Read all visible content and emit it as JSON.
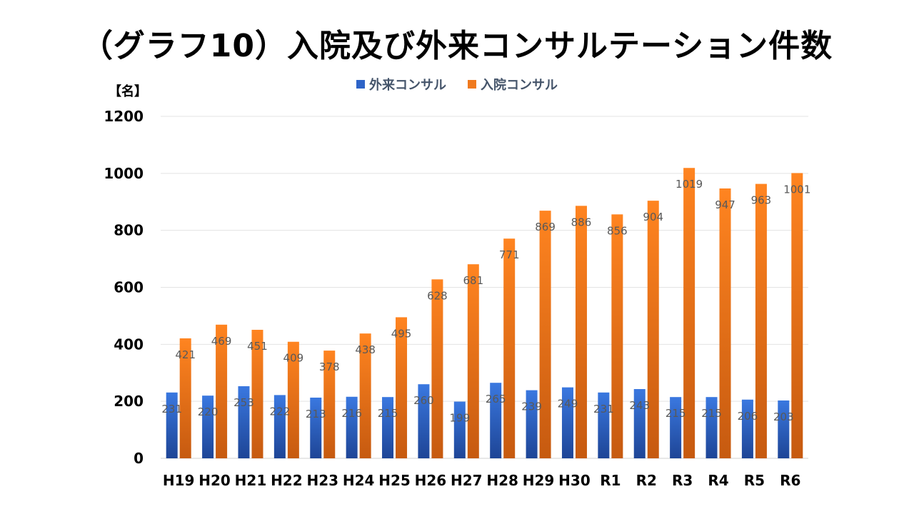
{
  "chart_data": {
    "type": "bar",
    "title": "（グラフ10）入院及び外来コンサルテーション件数",
    "unit_label": "【名】",
    "categories": [
      "H19",
      "H20",
      "H21",
      "H22",
      "H23",
      "H24",
      "H25",
      "H26",
      "H27",
      "H28",
      "H29",
      "H30",
      "R1",
      "R2",
      "R3",
      "R4",
      "R5",
      "R6"
    ],
    "series": [
      {
        "name": "外来コンサル",
        "color": "#2e64c8",
        "values": [
          231,
          220,
          253,
          222,
          213,
          216,
          215,
          260,
          199,
          265,
          239,
          249,
          231,
          243,
          215,
          215,
          206,
          203
        ]
      },
      {
        "name": "入院コンサル",
        "color": "#f07a1e",
        "values": [
          421,
          469,
          451,
          409,
          378,
          438,
          495,
          628,
          681,
          771,
          869,
          886,
          856,
          904,
          1019,
          947,
          963,
          1001
        ]
      }
    ],
    "ylim": [
      0,
      1200
    ],
    "yticks": [
      0,
      200,
      400,
      600,
      800,
      1000,
      1200
    ],
    "grid": true,
    "legend_position": "top-center"
  }
}
